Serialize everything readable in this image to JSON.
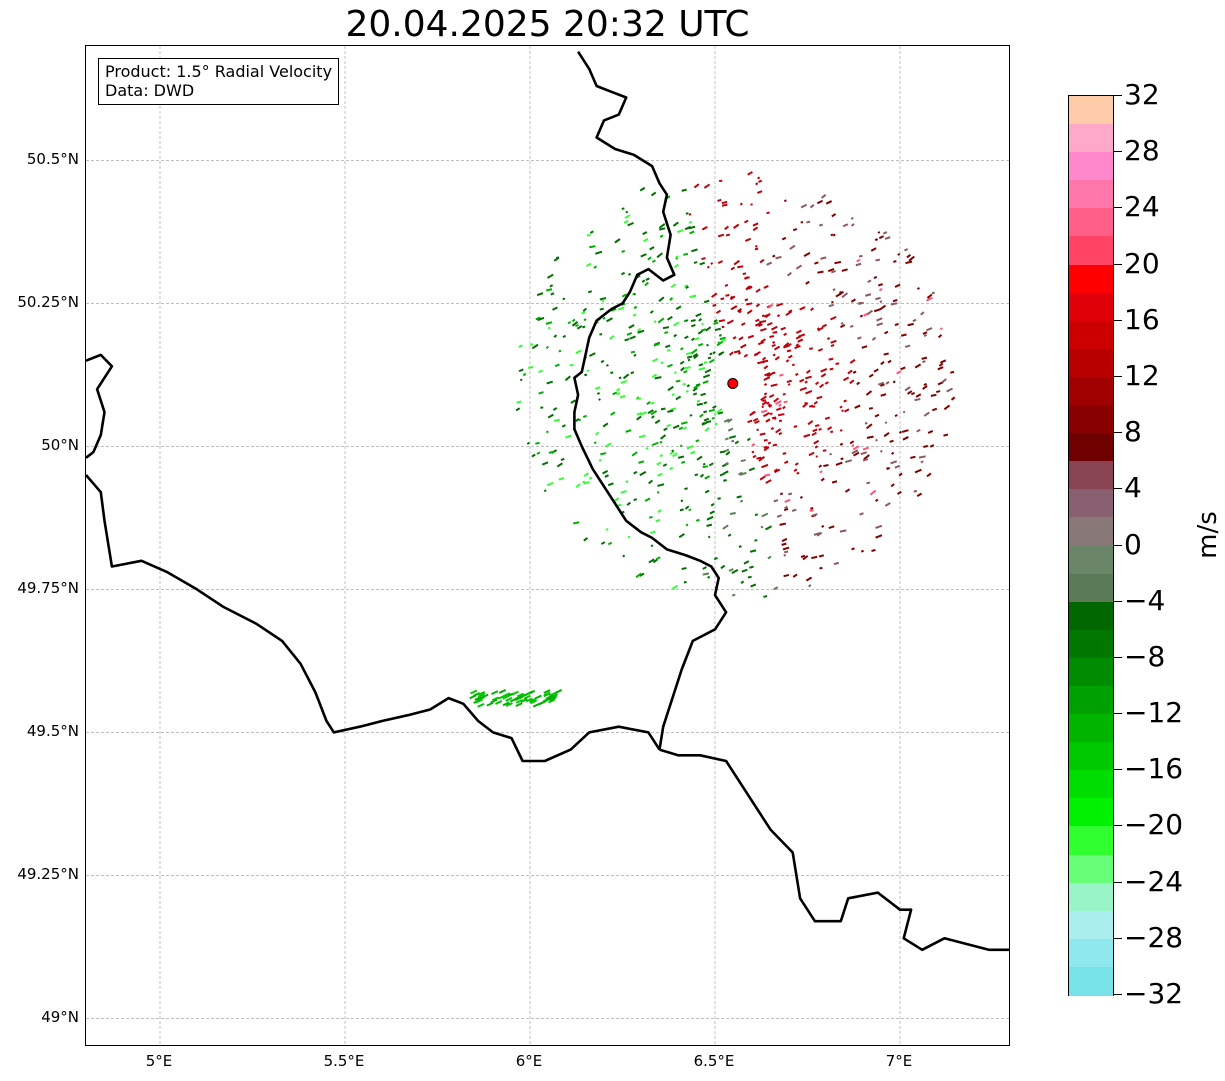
{
  "title": "20.04.2025 20:32 UTC",
  "info_box": {
    "product": "Product: 1.5° Radial Velocity",
    "source": "Data: DWD"
  },
  "map": {
    "lon_range": [
      4.8,
      7.3
    ],
    "lat_range": [
      48.95,
      50.7
    ],
    "gridlines": true,
    "lat_ticks": [
      {
        "value": 50.5,
        "label": "50.5°N"
      },
      {
        "value": 50.25,
        "label": "50.25°N"
      },
      {
        "value": 50.0,
        "label": "50°N"
      },
      {
        "value": 49.75,
        "label": "49.75°N"
      },
      {
        "value": 49.5,
        "label": "49.5°N"
      },
      {
        "value": 49.25,
        "label": "49.25°N"
      },
      {
        "value": 49.0,
        "label": "49°N"
      }
    ],
    "lon_ticks": [
      {
        "value": 5.0,
        "label": "5°E"
      },
      {
        "value": 5.5,
        "label": "5.5°E"
      },
      {
        "value": 6.0,
        "label": "6°E"
      },
      {
        "value": 6.5,
        "label": "6.5°E"
      },
      {
        "value": 7.0,
        "label": "7°E"
      }
    ],
    "radar_site": {
      "lon": 6.548,
      "lat": 50.11,
      "color": "#ff0000"
    },
    "borders": [
      [
        [
          6.13,
          50.69
        ],
        [
          6.16,
          50.66
        ],
        [
          6.18,
          50.63
        ],
        [
          6.22,
          50.62
        ],
        [
          6.26,
          50.61
        ],
        [
          6.24,
          50.58
        ],
        [
          6.2,
          50.57
        ],
        [
          6.18,
          50.54
        ],
        [
          6.23,
          50.52
        ],
        [
          6.28,
          50.51
        ],
        [
          6.33,
          50.49
        ],
        [
          6.35,
          50.46
        ],
        [
          6.37,
          50.44
        ],
        [
          6.36,
          50.41
        ],
        [
          6.38,
          50.37
        ],
        [
          6.37,
          50.33
        ],
        [
          6.39,
          50.3
        ],
        [
          6.36,
          50.29
        ],
        [
          6.32,
          50.31
        ],
        [
          6.29,
          50.3
        ],
        [
          6.27,
          50.27
        ],
        [
          6.25,
          50.25
        ],
        [
          6.22,
          50.24
        ],
        [
          6.18,
          50.22
        ],
        [
          6.16,
          50.19
        ],
        [
          6.15,
          50.16
        ],
        [
          6.14,
          50.13
        ],
        [
          6.12,
          50.12
        ],
        [
          6.13,
          50.09
        ],
        [
          6.12,
          50.06
        ],
        [
          6.12,
          50.03
        ],
        [
          6.14,
          50.0
        ],
        [
          6.17,
          49.96
        ],
        [
          6.2,
          49.93
        ],
        [
          6.23,
          49.9
        ],
        [
          6.26,
          49.87
        ],
        [
          6.3,
          49.85
        ],
        [
          6.33,
          49.84
        ],
        [
          6.37,
          49.82
        ],
        [
          6.42,
          49.81
        ],
        [
          6.46,
          49.8
        ],
        [
          6.49,
          49.79
        ],
        [
          6.51,
          49.77
        ],
        [
          6.5,
          49.74
        ],
        [
          6.53,
          49.71
        ],
        [
          6.5,
          49.68
        ],
        [
          6.44,
          49.66
        ],
        [
          6.41,
          49.61
        ],
        [
          6.38,
          49.55
        ],
        [
          6.36,
          49.51
        ],
        [
          6.35,
          49.47
        ]
      ],
      [
        [
          6.35,
          49.47
        ],
        [
          6.32,
          49.5
        ],
        [
          6.24,
          49.51
        ],
        [
          6.16,
          49.5
        ],
        [
          6.11,
          49.47
        ],
        [
          6.04,
          49.45
        ],
        [
          5.98,
          49.45
        ],
        [
          5.95,
          49.49
        ],
        [
          5.9,
          49.5
        ],
        [
          5.86,
          49.52
        ],
        [
          5.82,
          49.55
        ],
        [
          5.78,
          49.56
        ],
        [
          5.73,
          49.54
        ],
        [
          5.67,
          49.53
        ],
        [
          5.6,
          49.52
        ],
        [
          5.54,
          49.51
        ],
        [
          5.47,
          49.5
        ],
        [
          5.45,
          49.52
        ],
        [
          5.42,
          49.57
        ],
        [
          5.38,
          49.62
        ],
        [
          5.33,
          49.66
        ],
        [
          5.26,
          49.69
        ],
        [
          5.17,
          49.72
        ],
        [
          5.1,
          49.75
        ],
        [
          5.02,
          49.78
        ],
        [
          4.95,
          49.8
        ],
        [
          4.87,
          49.79
        ],
        [
          4.86,
          49.83
        ],
        [
          4.85,
          49.87
        ],
        [
          4.84,
          49.92
        ],
        [
          4.8,
          49.95
        ]
      ],
      [
        [
          4.8,
          50.15
        ],
        [
          4.84,
          50.16
        ],
        [
          4.87,
          50.14
        ],
        [
          4.83,
          50.1
        ],
        [
          4.85,
          50.06
        ],
        [
          4.84,
          50.02
        ],
        [
          4.82,
          49.99
        ],
        [
          4.8,
          49.98
        ]
      ],
      [
        [
          6.35,
          49.47
        ],
        [
          6.4,
          49.46
        ],
        [
          6.46,
          49.46
        ],
        [
          6.53,
          49.45
        ],
        [
          6.58,
          49.4
        ],
        [
          6.65,
          49.33
        ],
        [
          6.71,
          49.29
        ],
        [
          6.73,
          49.21
        ],
        [
          6.77,
          49.17
        ],
        [
          6.84,
          49.17
        ],
        [
          6.86,
          49.21
        ],
        [
          6.94,
          49.22
        ],
        [
          7.0,
          49.19
        ],
        [
          7.03,
          49.19
        ],
        [
          7.01,
          49.14
        ],
        [
          7.06,
          49.12
        ],
        [
          7.12,
          49.14
        ],
        [
          7.18,
          49.13
        ],
        [
          7.24,
          49.12
        ],
        [
          7.3,
          49.12
        ]
      ]
    ],
    "scan_colors": {
      "inbound_strong": "#00b000",
      "inbound_dark": "#007000",
      "inbound_light": "#33ff33",
      "near_zero_green": "#5c8058",
      "near_zero_red": "#8a5a60",
      "outbound_dark": "#800000",
      "outbound": "#c0000a",
      "outbound_pink": "#ff5577"
    }
  },
  "colorbar": {
    "unit": "m/s",
    "min": -32,
    "max": 32,
    "tick_labels": [
      "32",
      "28",
      "24",
      "20",
      "16",
      "12",
      "8",
      "4",
      "0",
      "−4",
      "−8",
      "−12",
      "−16",
      "−20",
      "−24",
      "−28",
      "−32"
    ],
    "colors_top_to_bottom": [
      "#ffccaa",
      "#ffa8c8",
      "#ff88cc",
      "#ff77aa",
      "#ff5f88",
      "#ff4466",
      "#ff0000",
      "#e00008",
      "#cc0000",
      "#b80000",
      "#a00000",
      "#880000",
      "#6e0000",
      "#884450",
      "#886070",
      "#887878",
      "#6a8568",
      "#5a7a58",
      "#006600",
      "#007700",
      "#008c00",
      "#00a000",
      "#00b400",
      "#00c800",
      "#00dd00",
      "#00f200",
      "#30ff30",
      "#66ff77",
      "#99f5c8",
      "#aaeeee",
      "#8ee8ee",
      "#77e2e8"
    ]
  }
}
